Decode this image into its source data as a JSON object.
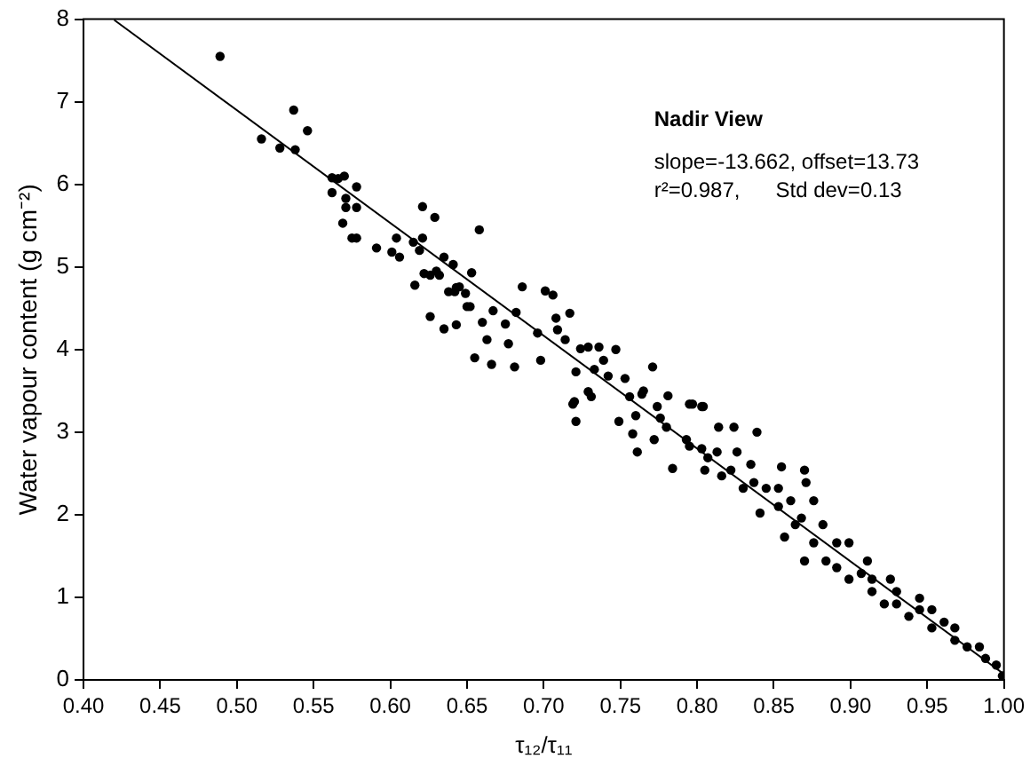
{
  "chart_data": {
    "type": "scatter",
    "xlabel": "τ₁₂/τ₁₁",
    "ylabel": "Water vapour content (g cm⁻²)",
    "annotations": [
      "Nadir View",
      "slope=-13.662, offset=13.73",
      "r²=0.987,      Std dev=0.13"
    ],
    "xlim": [
      0.4,
      1.0
    ],
    "ylim": [
      0,
      8
    ],
    "xticks": [
      {
        "value": 0.4,
        "label": "0.40"
      },
      {
        "value": 0.45,
        "label": "0.45"
      },
      {
        "value": 0.5,
        "label": "0.50"
      },
      {
        "value": 0.55,
        "label": "0.55"
      },
      {
        "value": 0.6,
        "label": "0.60"
      },
      {
        "value": 0.65,
        "label": "0.65"
      },
      {
        "value": 0.7,
        "label": "0.70"
      },
      {
        "value": 0.75,
        "label": "0.75"
      },
      {
        "value": 0.8,
        "label": "0.80"
      },
      {
        "value": 0.85,
        "label": "0.85"
      },
      {
        "value": 0.9,
        "label": "0.90"
      },
      {
        "value": 0.95,
        "label": "0.95"
      },
      {
        "value": 1.0,
        "label": "1.00"
      }
    ],
    "yticks": [
      0,
      1,
      2,
      3,
      4,
      5,
      6,
      7,
      8
    ],
    "grid": false,
    "legend": false,
    "series": [
      {
        "color": "#000000",
        "marker": "circle",
        "x": [
          0.489,
          0.516,
          0.528,
          0.537,
          0.538,
          0.546,
          0.562,
          0.566,
          0.57,
          0.562,
          0.571,
          0.571,
          0.578,
          0.578,
          0.569,
          0.575,
          0.578,
          0.591,
          0.601,
          0.604,
          0.606,
          0.615,
          0.616,
          0.619,
          0.621,
          0.621,
          0.622,
          0.626,
          0.629,
          0.63,
          0.632,
          0.635,
          0.626,
          0.635,
          0.638,
          0.641,
          0.642,
          0.643,
          0.645,
          0.649,
          0.65,
          0.652,
          0.653,
          0.655,
          0.658,
          0.643,
          0.66,
          0.663,
          0.667,
          0.666,
          0.686,
          0.701,
          0.706,
          0.717,
          0.675,
          0.682,
          0.696,
          0.708,
          0.709,
          0.714,
          0.677,
          0.698,
          0.681,
          0.721,
          0.724,
          0.729,
          0.736,
          0.747,
          0.739,
          0.742,
          0.753,
          0.771,
          0.733,
          0.756,
          0.764,
          0.781,
          0.72,
          0.731,
          0.729,
          0.776,
          0.797,
          0.803,
          0.814,
          0.824,
          0.839,
          0.76,
          0.719,
          0.721,
          0.749,
          0.758,
          0.761,
          0.765,
          0.772,
          0.774,
          0.784,
          0.78,
          0.795,
          0.804,
          0.793,
          0.803,
          0.805,
          0.813,
          0.816,
          0.826,
          0.83,
          0.835,
          0.855,
          0.87,
          0.871,
          0.845,
          0.853,
          0.841,
          0.861,
          0.876,
          0.864,
          0.857,
          0.87,
          0.882,
          0.891,
          0.899,
          0.891,
          0.907,
          0.911,
          0.926,
          0.93,
          0.945,
          0.953,
          0.968,
          0.968,
          0.988,
          0.999,
          0.976,
          0.953,
          0.938,
          0.922,
          0.914,
          0.899,
          0.884,
          0.876,
          0.868,
          0.853,
          0.837,
          0.822,
          0.807,
          0.795,
          0.984,
          0.995,
          0.961,
          0.945,
          0.93,
          0.914
        ],
        "values": [
          7.55,
          6.55,
          6.44,
          6.9,
          6.42,
          6.65,
          6.08,
          6.07,
          6.1,
          5.9,
          5.83,
          5.72,
          5.97,
          5.72,
          5.53,
          5.35,
          5.35,
          5.23,
          5.18,
          5.35,
          5.12,
          5.3,
          4.78,
          5.2,
          5.73,
          5.35,
          4.92,
          4.9,
          5.6,
          4.95,
          4.9,
          5.12,
          4.4,
          4.25,
          4.7,
          5.03,
          4.7,
          4.75,
          4.76,
          4.68,
          4.52,
          4.52,
          4.93,
          3.9,
          5.45,
          4.3,
          4.33,
          4.12,
          4.47,
          3.82,
          4.76,
          4.71,
          4.66,
          4.44,
          4.31,
          4.45,
          4.2,
          4.38,
          4.24,
          4.12,
          4.07,
          3.87,
          3.79,
          3.73,
          4.01,
          4.03,
          4.03,
          4.0,
          3.87,
          3.68,
          3.65,
          3.79,
          3.76,
          3.43,
          3.46,
          3.44,
          3.37,
          3.43,
          3.49,
          3.17,
          3.34,
          3.31,
          3.06,
          3.06,
          3.0,
          3.2,
          3.34,
          3.13,
          3.13,
          2.98,
          2.76,
          3.5,
          2.91,
          3.31,
          2.56,
          3.06,
          3.34,
          3.31,
          2.91,
          2.8,
          2.54,
          2.76,
          2.47,
          2.76,
          2.32,
          2.61,
          2.58,
          2.54,
          2.39,
          2.32,
          2.1,
          2.02,
          2.17,
          2.17,
          1.88,
          1.73,
          1.44,
          1.88,
          1.66,
          1.66,
          1.36,
          1.29,
          1.44,
          1.22,
          1.07,
          0.99,
          0.85,
          0.63,
          0.48,
          0.26,
          0.05,
          0.4,
          0.63,
          0.77,
          0.92,
          1.07,
          1.22,
          1.44,
          1.66,
          1.96,
          2.32,
          2.39,
          2.54,
          2.69,
          2.83,
          0.4,
          0.18,
          0.7,
          0.85,
          0.92,
          1.22
        ]
      },
      {
        "type": "line",
        "color": "#000000",
        "marker": "none",
        "line_style": "solid",
        "x": [
          0.42,
          1.0
        ],
        "values": [
          7.99,
          0.07
        ]
      }
    ]
  }
}
